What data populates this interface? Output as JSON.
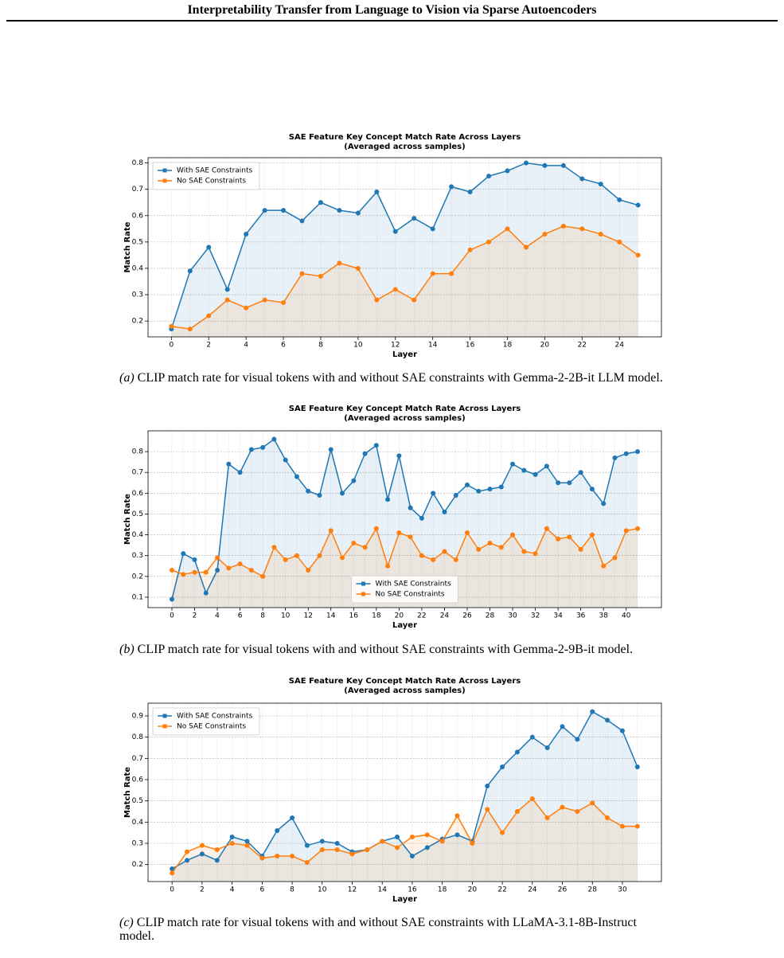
{
  "header": {
    "title": "Interpretability Transfer from Language to Vision via Sparse Autoencoders"
  },
  "chart_data": [
    {
      "type": "line",
      "title": "SAE Feature Key Concept Match Rate Across Layers",
      "subtitle": "(Averaged across samples)",
      "x_label": "Layer",
      "y_label": "Match Rate",
      "x": [
        0,
        1,
        2,
        3,
        4,
        5,
        6,
        7,
        8,
        9,
        10,
        11,
        12,
        13,
        14,
        15,
        16,
        17,
        18,
        19,
        20,
        21,
        22,
        23,
        24,
        25
      ],
      "series": [
        {
          "name": "With SAE Constraints",
          "color": "#1f77b4",
          "values": [
            0.17,
            0.39,
            0.48,
            0.32,
            0.53,
            0.62,
            0.62,
            0.58,
            0.65,
            0.62,
            0.61,
            0.69,
            0.54,
            0.59,
            0.55,
            0.71,
            0.69,
            0.75,
            0.77,
            0.8,
            0.79,
            0.79,
            0.74,
            0.72,
            0.66,
            0.64
          ]
        },
        {
          "name": "No SAE Constraints",
          "color": "#ff7f0e",
          "values": [
            0.18,
            0.17,
            0.22,
            0.28,
            0.25,
            0.28,
            0.27,
            0.38,
            0.37,
            0.42,
            0.4,
            0.28,
            0.32,
            0.28,
            0.38,
            0.38,
            0.47,
            0.5,
            0.55,
            0.48,
            0.53,
            0.56,
            0.55,
            0.53,
            0.5,
            0.45
          ]
        }
      ],
      "xlim": [
        -1.25,
        26.25
      ],
      "xticks": [
        0,
        2,
        4,
        6,
        8,
        10,
        12,
        14,
        16,
        18,
        20,
        22,
        24
      ],
      "ylim": [
        0.14,
        0.82
      ],
      "yticks": [
        0.2,
        0.3,
        0.4,
        0.5,
        0.6,
        0.7,
        0.8
      ],
      "grid": true,
      "legend": "upper left",
      "caption": {
        "label": "(a)",
        "text": "CLIP match rate for visual tokens with and without SAE constraints with Gemma-2-2B-it LLM model."
      }
    },
    {
      "type": "line",
      "title": "SAE Feature Key Concept Match Rate Across Layers",
      "subtitle": "(Averaged across samples)",
      "x_label": "Layer",
      "y_label": "Match Rate",
      "x": [
        0,
        1,
        2,
        3,
        4,
        5,
        6,
        7,
        8,
        9,
        10,
        11,
        12,
        13,
        14,
        15,
        16,
        17,
        18,
        19,
        20,
        21,
        22,
        23,
        24,
        25,
        26,
        27,
        28,
        29,
        30,
        31,
        32,
        33,
        34,
        35,
        36,
        37,
        38,
        39,
        40,
        41
      ],
      "series": [
        {
          "name": "With SAE Constraints",
          "color": "#1f77b4",
          "values": [
            0.09,
            0.31,
            0.28,
            0.12,
            0.23,
            0.74,
            0.7,
            0.81,
            0.82,
            0.86,
            0.76,
            0.68,
            0.61,
            0.59,
            0.81,
            0.6,
            0.66,
            0.79,
            0.83,
            0.57,
            0.78,
            0.53,
            0.48,
            0.6,
            0.51,
            0.59,
            0.64,
            0.61,
            0.62,
            0.63,
            0.74,
            0.71,
            0.69,
            0.73,
            0.65,
            0.65,
            0.7,
            0.62,
            0.55,
            0.77,
            0.79,
            0.8
          ]
        },
        {
          "name": "No SAE Constraints",
          "color": "#ff7f0e",
          "values": [
            0.23,
            0.21,
            0.22,
            0.22,
            0.29,
            0.24,
            0.26,
            0.23,
            0.2,
            0.34,
            0.28,
            0.3,
            0.23,
            0.3,
            0.42,
            0.29,
            0.36,
            0.34,
            0.43,
            0.25,
            0.41,
            0.39,
            0.3,
            0.28,
            0.32,
            0.28,
            0.41,
            0.33,
            0.36,
            0.34,
            0.4,
            0.32,
            0.31,
            0.43,
            0.38,
            0.39,
            0.33,
            0.4,
            0.25,
            0.29,
            0.42,
            0.43
          ]
        }
      ],
      "xlim": [
        -2.1,
        43.1
      ],
      "xticks": [
        0,
        2,
        4,
        6,
        8,
        10,
        12,
        14,
        16,
        18,
        20,
        22,
        24,
        26,
        28,
        30,
        32,
        34,
        36,
        38,
        40
      ],
      "ylim": [
        0.05,
        0.9
      ],
      "yticks": [
        0.1,
        0.2,
        0.3,
        0.4,
        0.5,
        0.6,
        0.7,
        0.8
      ],
      "grid": true,
      "legend": "lower center",
      "caption": {
        "label": "(b)",
        "text": "CLIP match rate for visual tokens with and without SAE constraints with Gemma-2-9B-it model."
      }
    },
    {
      "type": "line",
      "title": "SAE Feature Key Concept Match Rate Across Layers",
      "subtitle": "(Averaged across samples)",
      "x_label": "Layer",
      "y_label": "Match Rate",
      "x": [
        0,
        1,
        2,
        3,
        4,
        5,
        6,
        7,
        8,
        9,
        10,
        11,
        12,
        13,
        14,
        15,
        16,
        17,
        18,
        19,
        20,
        21,
        22,
        23,
        24,
        25,
        26,
        27,
        28,
        29,
        30,
        31
      ],
      "series": [
        {
          "name": "With SAE Constraints",
          "color": "#1f77b4",
          "values": [
            0.18,
            0.22,
            0.25,
            0.22,
            0.33,
            0.31,
            0.24,
            0.36,
            0.42,
            0.29,
            0.31,
            0.3,
            0.26,
            0.27,
            0.31,
            0.33,
            0.24,
            0.28,
            0.32,
            0.34,
            0.31,
            0.57,
            0.66,
            0.73,
            0.8,
            0.75,
            0.85,
            0.79,
            0.92,
            0.88,
            0.83,
            0.66
          ]
        },
        {
          "name": "No SAE Constraints",
          "color": "#ff7f0e",
          "values": [
            0.16,
            0.26,
            0.29,
            0.27,
            0.3,
            0.29,
            0.23,
            0.24,
            0.24,
            0.21,
            0.27,
            0.27,
            0.25,
            0.27,
            0.31,
            0.28,
            0.33,
            0.34,
            0.31,
            0.43,
            0.3,
            0.46,
            0.35,
            0.45,
            0.51,
            0.42,
            0.47,
            0.45,
            0.49,
            0.42,
            0.38,
            0.38
          ]
        }
      ],
      "xlim": [
        -1.6,
        32.6
      ],
      "xticks": [
        0,
        2,
        4,
        6,
        8,
        10,
        12,
        14,
        16,
        18,
        20,
        22,
        24,
        26,
        28,
        30
      ],
      "ylim": [
        0.12,
        0.96
      ],
      "yticks": [
        0.2,
        0.3,
        0.4,
        0.5,
        0.6,
        0.7,
        0.8,
        0.9
      ],
      "grid": true,
      "legend": "upper left",
      "caption": {
        "label": "(c)",
        "text": "CLIP match rate for visual tokens with and without SAE constraints with LLaMA-3.1-8B-Instruct model."
      }
    }
  ]
}
